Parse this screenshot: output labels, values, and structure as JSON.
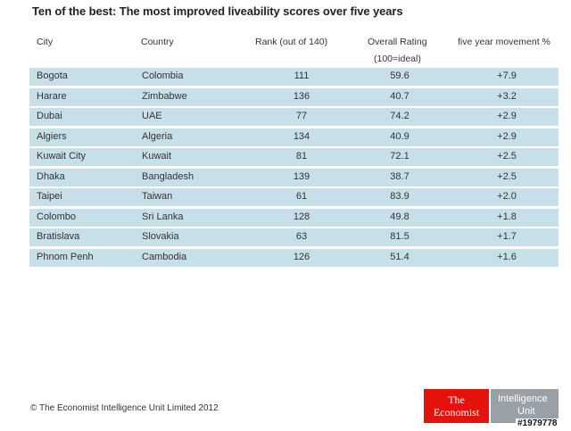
{
  "chart_data": {
    "type": "table",
    "title": "Ten of the best: The most improved liveability scores over five years",
    "columns": [
      "City",
      "Country",
      "Rank (out of 140)",
      "Overall Rating",
      "five year movement %"
    ],
    "column_subtitles": {
      "rating": "(100=ideal)"
    },
    "rows": [
      {
        "city": "Bogota",
        "country": "Colombia",
        "rank": "111",
        "rating": "59.6",
        "movement": "+7.9"
      },
      {
        "city": "Harare",
        "country": "Zimbabwe",
        "rank": "136",
        "rating": "40.7",
        "movement": "+3.2"
      },
      {
        "city": "Dubai",
        "country": "UAE",
        "rank": "77",
        "rating": "74.2",
        "movement": "+2.9"
      },
      {
        "city": "Algiers",
        "country": "Algeria",
        "rank": "134",
        "rating": "40.9",
        "movement": "+2.9"
      },
      {
        "city": "Kuwait City",
        "country": "Kuwait",
        "rank": "81",
        "rating": "72.1",
        "movement": "+2.5"
      },
      {
        "city": "Dhaka",
        "country": "Bangladesh",
        "rank": "139",
        "rating": "38.7",
        "movement": "+2.5"
      },
      {
        "city": "Taipei",
        "country": "Taiwan",
        "rank": "61",
        "rating": "83.9",
        "movement": "+2.0"
      },
      {
        "city": "Colombo",
        "country": "Sri Lanka",
        "rank": "128",
        "rating": "49.8",
        "movement": "+1.8"
      },
      {
        "city": "Bratislava",
        "country": "Slovakia",
        "rank": "63",
        "rating": "81.5",
        "movement": "+1.7"
      },
      {
        "city": "Phnom Penh",
        "country": "Cambodia",
        "rank": "126",
        "rating": "51.4",
        "movement": "+1.6"
      }
    ],
    "row_color": "#c7dfe8"
  },
  "footer": {
    "copyright": "© The Economist Intelligence Unit Limited 2012"
  },
  "logo": {
    "left_line1": "The",
    "left_line2": "Economist",
    "right_line1": "Intelligence",
    "right_line2": "Unit",
    "red": "#e3120b",
    "grey": "#9aa1a6"
  },
  "watermark": "#1979778"
}
